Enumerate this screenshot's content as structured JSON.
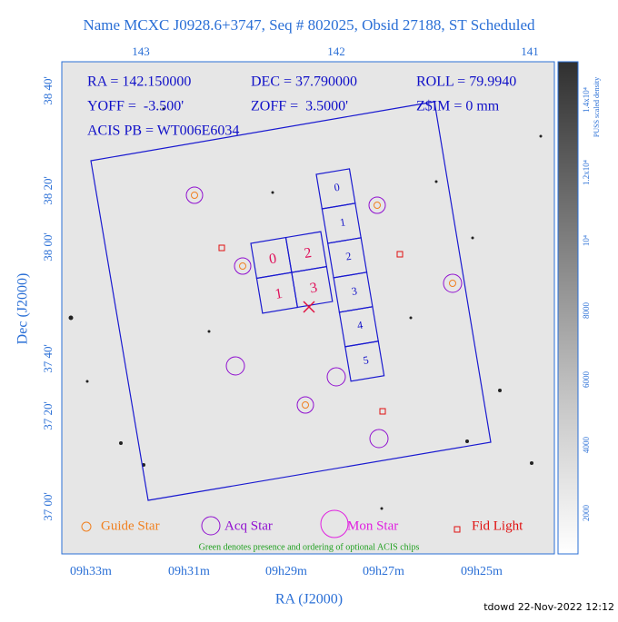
{
  "title": "Name MCXC J0928.6+3747, Seq # 802025, Obsid 27188, ST Scheduled",
  "top_axis_ticks": [
    "143",
    "142",
    "141"
  ],
  "left_axis_ticks": [
    "38 40'",
    "38 20'",
    "38 00'",
    "37 40'",
    "37 20'",
    "37 00'"
  ],
  "bottom_axis_ticks": [
    "09h33m",
    "09h31m",
    "09h29m",
    "09h27m",
    "09h25m"
  ],
  "x_axis_label": "RA (J2000)",
  "y_axis_label": "Dec (J2000)",
  "colorbar": {
    "label": "PUSS scaled density",
    "ticks": [
      "2000",
      "4000",
      "6000",
      "8000",
      "10⁴",
      "1.2x10⁴",
      "1.4x10⁴"
    ]
  },
  "pointing": [
    "RA = 142.150000",
    "DEC = 37.790000",
    "ROLL = 79.9940",
    "YOFF =  -3.500'",
    "ZOFF =  3.5000'",
    "Z$IM = 0 mm",
    "ACIS PB = WT006E6034"
  ],
  "acis_s_chips": [
    "0",
    "1",
    "2",
    "3",
    "4",
    "5"
  ],
  "acis_i_chips": [
    "0",
    "2",
    "1",
    "3"
  ],
  "legend": [
    "Guide Star",
    "Acq Star",
    "Mon Star",
    "Fid Light"
  ],
  "note": "Green denotes presence and ordering of optional ACIS chips",
  "timestamp": "tdowd 22-Nov-2022 12:12"
}
